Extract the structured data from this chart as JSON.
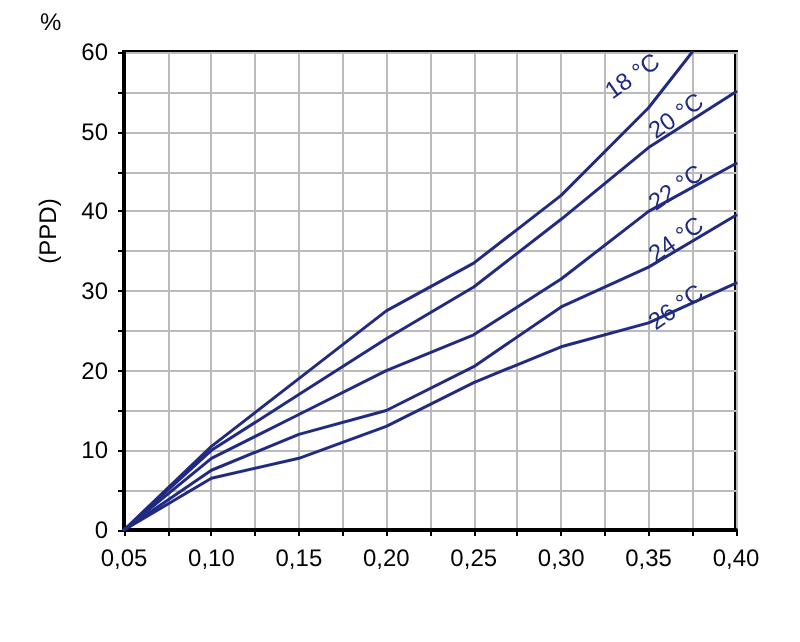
{
  "chart_data": {
    "type": "line",
    "ylabel": "(PPD)",
    "annotations": [
      "%"
    ],
    "xlim": [
      0.05,
      0.4
    ],
    "ylim": [
      0,
      60
    ],
    "xticks": [
      {
        "value": 0.05,
        "label": "0,05"
      },
      {
        "value": 0.075,
        "label": null
      },
      {
        "value": 0.1,
        "label": "0,10"
      },
      {
        "value": 0.125,
        "label": null
      },
      {
        "value": 0.15,
        "label": "0,15"
      },
      {
        "value": 0.175,
        "label": null
      },
      {
        "value": 0.2,
        "label": "0,20"
      },
      {
        "value": 0.225,
        "label": null
      },
      {
        "value": 0.25,
        "label": "0,25"
      },
      {
        "value": 0.275,
        "label": null
      },
      {
        "value": 0.3,
        "label": "0,30"
      },
      {
        "value": 0.325,
        "label": null
      },
      {
        "value": 0.35,
        "label": "0,35"
      },
      {
        "value": 0.375,
        "label": null
      },
      {
        "value": 0.4,
        "label": "0,40"
      }
    ],
    "yticks": [
      0,
      {
        "value": 5,
        "label": null
      },
      10,
      {
        "value": 15,
        "label": null
      },
      20,
      {
        "value": 25,
        "label": null
      },
      30,
      {
        "value": 35,
        "label": null
      },
      40,
      {
        "value": 45,
        "label": null
      },
      50,
      {
        "value": 55,
        "label": null
      },
      60
    ],
    "grid": true,
    "marker": "none",
    "series": [
      {
        "name": "18 °C",
        "color": "#1f2a80",
        "x": [
          0.05,
          0.1,
          0.15,
          0.2,
          0.25,
          0.3,
          0.35,
          0.375
        ],
        "values": [
          0,
          10.5,
          19,
          27.5,
          33.5,
          42,
          53,
          60
        ]
      },
      {
        "name": "20 °C",
        "color": "#1f2a80",
        "x": [
          0.05,
          0.1,
          0.15,
          0.2,
          0.25,
          0.3,
          0.35,
          0.4
        ],
        "values": [
          0,
          10,
          17,
          24,
          30.5,
          39,
          48,
          55
        ]
      },
      {
        "name": "22 °C",
        "color": "#1f2a80",
        "x": [
          0.05,
          0.1,
          0.15,
          0.2,
          0.25,
          0.3,
          0.35,
          0.4
        ],
        "values": [
          0,
          9,
          14.5,
          20,
          24.5,
          31.5,
          40,
          46
        ]
      },
      {
        "name": "24 °C",
        "color": "#1f2a80",
        "x": [
          0.05,
          0.1,
          0.15,
          0.2,
          0.25,
          0.3,
          0.35,
          0.4
        ],
        "values": [
          0,
          7.5,
          12,
          15,
          20.5,
          28,
          33,
          39.5
        ]
      },
      {
        "name": "26 °C",
        "color": "#1f2a80",
        "x": [
          0.05,
          0.1,
          0.15,
          0.2,
          0.25,
          0.3,
          0.35,
          0.4
        ],
        "values": [
          0,
          6.5,
          9,
          13,
          18.5,
          23,
          26,
          31
        ]
      }
    ]
  }
}
